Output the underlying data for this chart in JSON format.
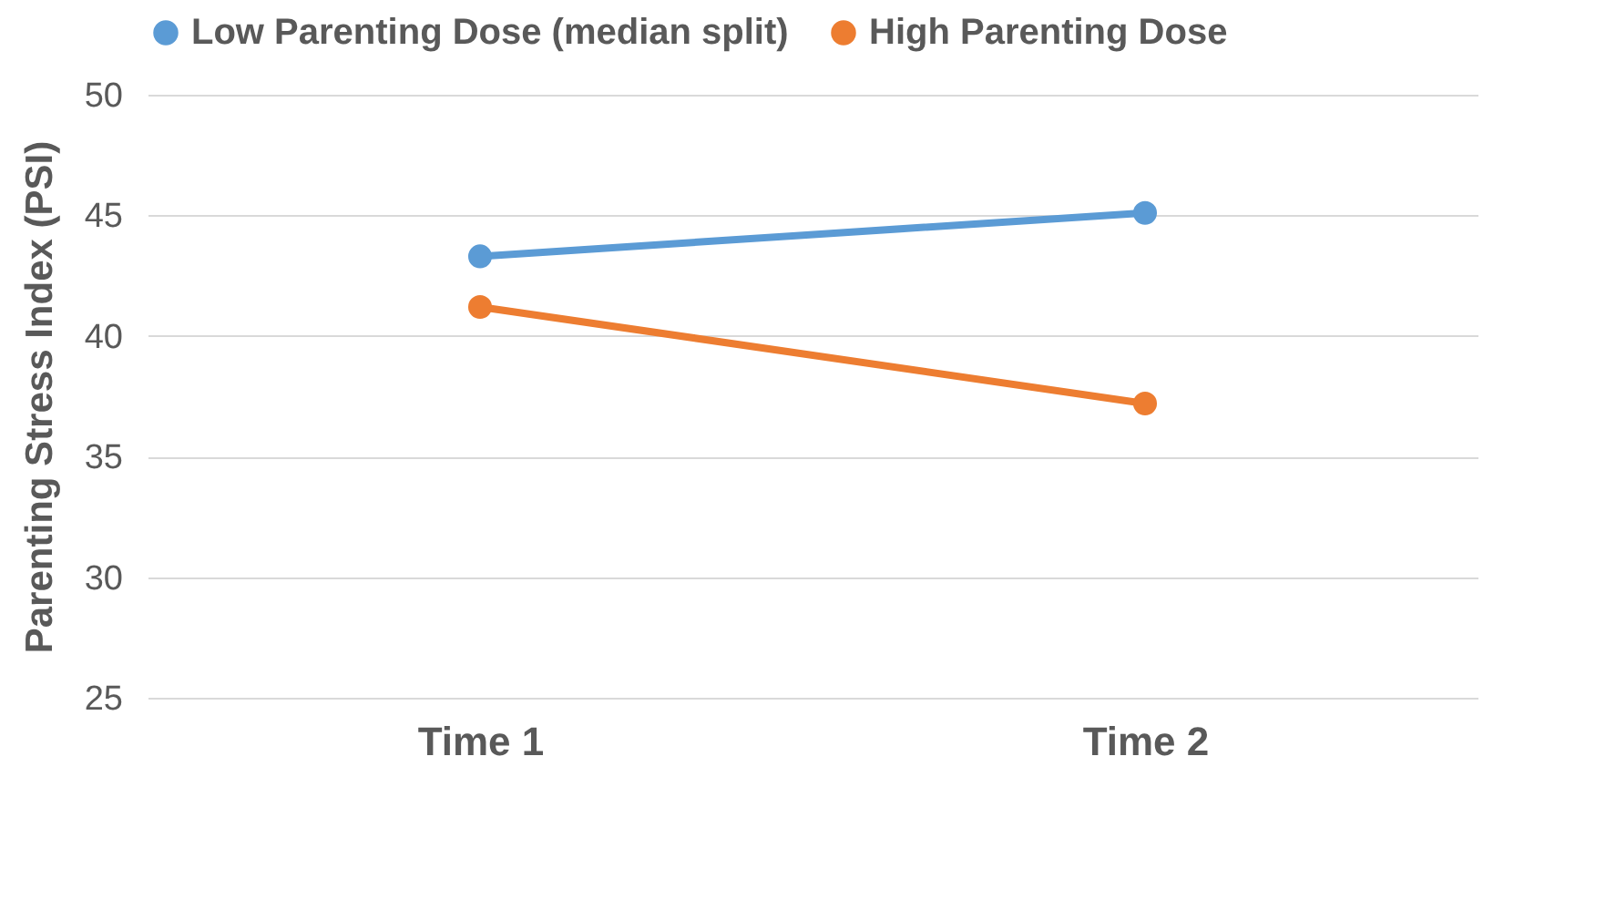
{
  "chart_data": {
    "type": "line",
    "ylabel": "Parenting Stress Index (PSI)",
    "categories": [
      "Time 1",
      "Time 2"
    ],
    "series": [
      {
        "name": "Low Parenting Dose (median split)",
        "color": "#5b9bd5",
        "values": [
          43.3,
          45.1
        ]
      },
      {
        "name": "High Parenting Dose",
        "color": "#ed7d31",
        "values": [
          41.2,
          37.2
        ]
      }
    ],
    "ylim": [
      25,
      50
    ],
    "yticks": [
      25,
      30,
      35,
      40,
      45,
      50
    ],
    "grid": "y",
    "legend": "top",
    "marker": "circle",
    "line_style": "solid"
  }
}
